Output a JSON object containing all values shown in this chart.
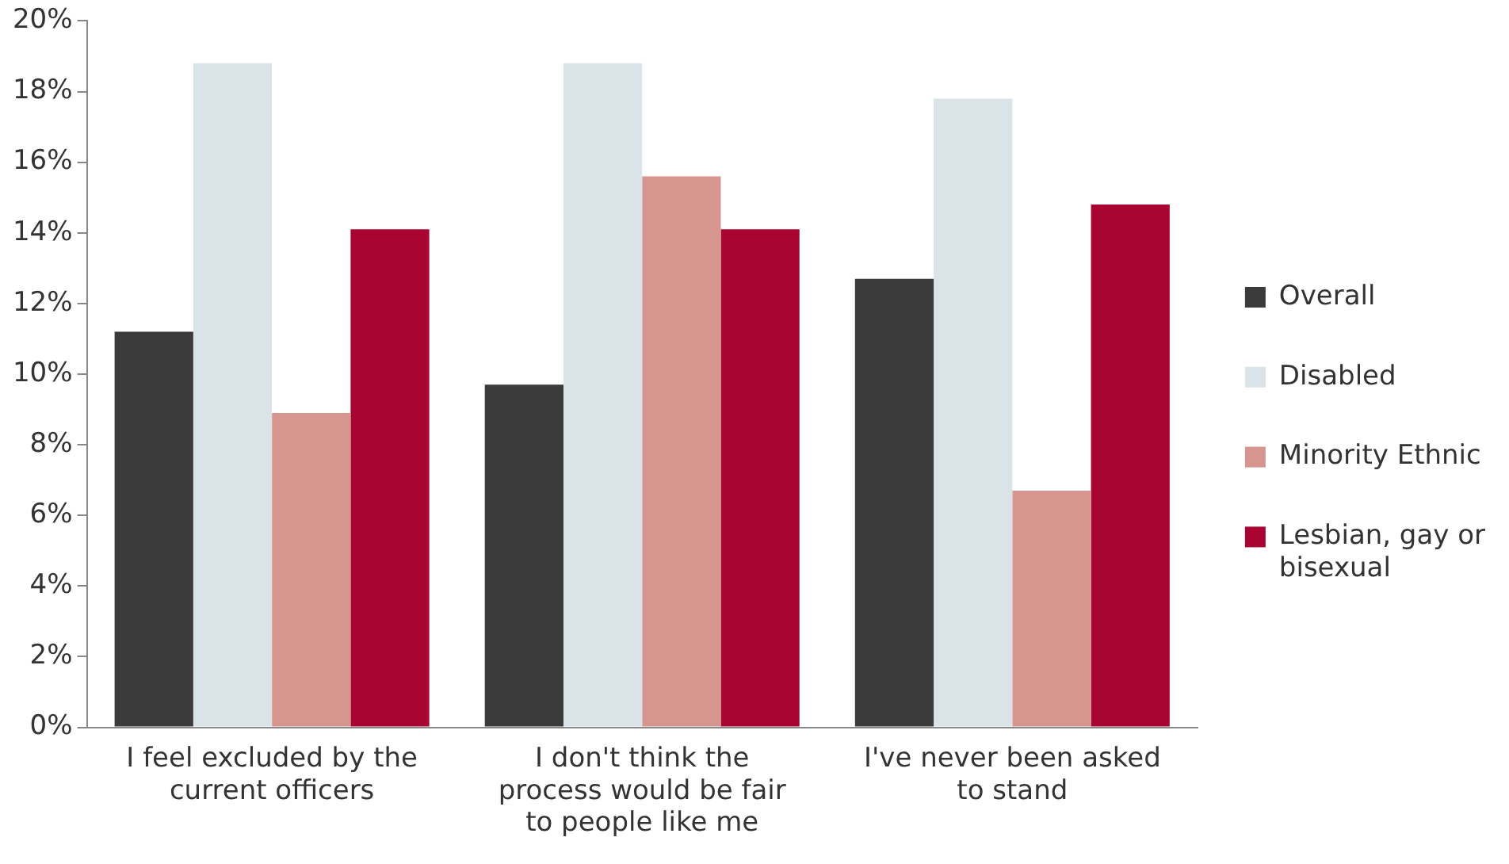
{
  "chart_data": {
    "type": "bar",
    "categories": [
      "I feel excluded by the current officers",
      "I don't think the process would be fair to people like me",
      "I've never been asked to stand"
    ],
    "series": [
      {
        "name": "Overall",
        "color": "#3b3b3b",
        "values": [
          11.2,
          9.7,
          12.7
        ]
      },
      {
        "name": "Disabled",
        "color": "#d9e3e8",
        "values": [
          18.8,
          18.8,
          17.8
        ]
      },
      {
        "name": "Minority Ethnic",
        "color": "#d6958f",
        "values": [
          8.9,
          15.6,
          6.7
        ]
      },
      {
        "name": "Lesbian, gay or bisexual",
        "color": "#a80533",
        "values": [
          14.1,
          14.1,
          14.8
        ]
      }
    ],
    "ylim": [
      0,
      20
    ],
    "yticks": [
      {
        "value": 0,
        "label": "0%"
      },
      {
        "value": 2,
        "label": "2%"
      },
      {
        "value": 4,
        "label": "4%"
      },
      {
        "value": 6,
        "label": "6%"
      },
      {
        "value": 8,
        "label": "8%"
      },
      {
        "value": 10,
        "label": "10%"
      },
      {
        "value": 12,
        "label": "12%"
      },
      {
        "value": 14,
        "label": "14%"
      },
      {
        "value": 16,
        "label": "16%"
      },
      {
        "value": 18,
        "label": "18%"
      },
      {
        "value": 20,
        "label": "20%"
      }
    ],
    "grid": false,
    "legend": "right"
  }
}
